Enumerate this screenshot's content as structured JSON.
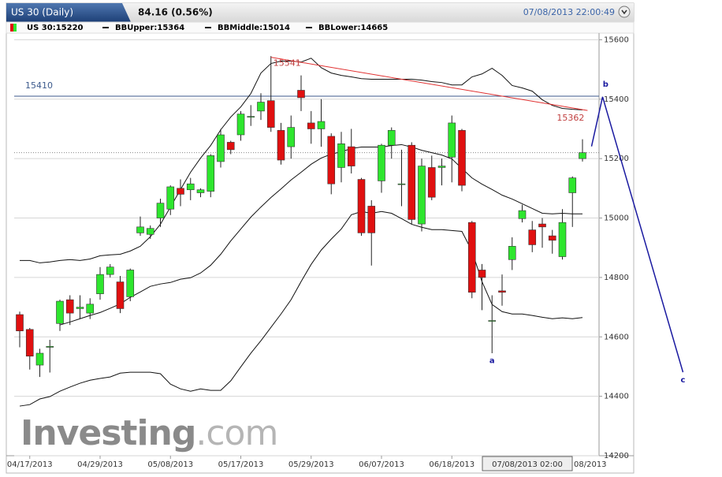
{
  "header": {
    "tab": "US 30 (Daily)",
    "change": "84.16 (0.56%)",
    "timestamp": "07/08/2013 22:00:49"
  },
  "legend": [
    "US 30:15220",
    "BBUpper:15364",
    "BBMiddle:15014",
    "BBLower:14665"
  ],
  "watermark": {
    "brand": "Investing",
    "suffix": ".com"
  },
  "chart_data": {
    "type": "candlestick",
    "up_color": "#2ee62e",
    "down_color": "#e01010",
    "categories": [
      null,
      "04/17/2013",
      null,
      null,
      null,
      null,
      null,
      null,
      "04/29/2013",
      null,
      null,
      null,
      null,
      null,
      null,
      "05/08/2013",
      null,
      null,
      null,
      null,
      null,
      null,
      "05/17/2013",
      null,
      null,
      null,
      null,
      null,
      null,
      "05/29/2013",
      null,
      null,
      null,
      null,
      null,
      null,
      "06/07/2013",
      null,
      null,
      null,
      null,
      null,
      null,
      "06/18/2013",
      null,
      null,
      null,
      null,
      null,
      null,
      null,
      null,
      null,
      null,
      null,
      null,
      null
    ],
    "crosshair_label": "07/08/2013 02:00",
    "clipped_x_label": "08/2013",
    "open": [
      14675,
      14625,
      14505,
      14565,
      14645,
      14725,
      14695,
      14680,
      14745,
      14810,
      14785,
      14735,
      14950,
      14945,
      15000,
      15030,
      15100,
      15095,
      15085,
      15090,
      15190,
      15255,
      15280,
      15340,
      15360,
      15395,
      15295,
      15240,
      15430,
      15320,
      15300,
      15275,
      15170,
      15240,
      15130,
      15040,
      15125,
      15245,
      15115,
      15245,
      14980,
      15170,
      15170,
      15205,
      15295,
      14985,
      14825,
      14655,
      14755,
      14860,
      14998,
      14960,
      14980,
      14940,
      14870,
      15085,
      15200
    ],
    "high": [
      14685,
      14630,
      14560,
      14590,
      14725,
      14740,
      14740,
      14730,
      14835,
      14845,
      14805,
      14830,
      15005,
      14975,
      15065,
      15110,
      15130,
      15135,
      15100,
      15215,
      15300,
      15260,
      15360,
      15380,
      15420,
      15545,
      15320,
      15345,
      15480,
      15360,
      15400,
      15285,
      15290,
      15300,
      15135,
      15060,
      15250,
      15305,
      15230,
      15255,
      15200,
      15210,
      15200,
      15345,
      15300,
      14990,
      14845,
      14740,
      14810,
      14935,
      15045,
      14990,
      15000,
      14960,
      15030,
      15140,
      15265
    ],
    "low": [
      14565,
      14490,
      14465,
      14480,
      14620,
      14640,
      14660,
      14660,
      14725,
      14800,
      14680,
      14720,
      14940,
      14930,
      14970,
      15010,
      15040,
      15060,
      15070,
      15070,
      15170,
      15215,
      15260,
      15310,
      15330,
      15290,
      15180,
      15200,
      15360,
      15250,
      15240,
      15080,
      15120,
      15150,
      14940,
      14840,
      15085,
      15200,
      15040,
      14980,
      14955,
      15060,
      15110,
      15120,
      15090,
      14730,
      14690,
      14545,
      14705,
      14825,
      14985,
      14885,
      14900,
      14880,
      14860,
      14970,
      15190
    ],
    "close": [
      14620,
      14535,
      14545,
      14568,
      14720,
      14680,
      14700,
      14710,
      14810,
      14835,
      14695,
      14825,
      14970,
      14965,
      15050,
      15105,
      15080,
      15115,
      15095,
      15210,
      15280,
      15230,
      15350,
      15342,
      15390,
      15305,
      15195,
      15305,
      15405,
      15300,
      15325,
      15115,
      15250,
      15175,
      14950,
      14950,
      15245,
      15295,
      15115,
      14995,
      15175,
      15070,
      15175,
      15320,
      15110,
      14750,
      14800,
      14655,
      14750,
      14905,
      15025,
      14910,
      14970,
      14925,
      14985,
      15135,
      15220
    ],
    "overlays": [
      {
        "color": "#111111",
        "values": [
          14857,
          14857,
          14849,
          14852,
          14857,
          14860,
          14857,
          14862,
          14873,
          14876,
          14878,
          14889,
          14905,
          14937,
          14979,
          15037,
          15096,
          15154,
          15202,
          15244,
          15297,
          15340,
          15374,
          15419,
          15488,
          15520,
          15528,
          15528,
          15525,
          15538,
          15506,
          15488,
          15480,
          15475,
          15469,
          15467,
          15467,
          15467,
          15467,
          15467,
          15464,
          15459,
          15456,
          15448,
          15448,
          15475,
          15485,
          15504,
          15480,
          15446,
          15438,
          15427,
          15398,
          15379,
          15369,
          15366,
          15364
        ]
      },
      {
        "color": "#111111",
        "values": [
          null,
          null,
          null,
          null,
          14640,
          14650,
          14661,
          14672,
          14682,
          14696,
          14711,
          14733,
          14751,
          14770,
          14778,
          14783,
          14794,
          14799,
          14815,
          14841,
          14878,
          14923,
          14963,
          15003,
          15037,
          15069,
          15098,
          15128,
          15154,
          15181,
          15202,
          15215,
          15223,
          15234,
          15239,
          15239,
          15239,
          15244,
          15247,
          15239,
          15228,
          15220,
          15212,
          15199,
          15167,
          15135,
          15114,
          15096,
          15077,
          15064,
          15048,
          15032,
          15016,
          15014,
          15016,
          15014,
          15014
        ]
      },
      {
        "color": "#111111",
        "values": [
          14367,
          14372,
          14391,
          14399,
          14417,
          14431,
          14444,
          14454,
          14460,
          14465,
          14478,
          14481,
          14481,
          14481,
          14476,
          14441,
          14425,
          14417,
          14425,
          14420,
          14420,
          14452,
          14499,
          14545,
          14587,
          14632,
          14677,
          14725,
          14786,
          14844,
          14892,
          14929,
          14963,
          15011,
          15022,
          15016,
          15022,
          15016,
          14998,
          14979,
          14969,
          14961,
          14961,
          14958,
          14955,
          14889,
          14786,
          14709,
          14685,
          14677,
          14677,
          14672,
          14666,
          14661,
          14664,
          14661,
          14665
        ]
      }
    ],
    "hline": {
      "value": 15410,
      "color": "#3c5a8c"
    },
    "price_line": {
      "value": 15220
    },
    "trendline": {
      "color": "#e03030",
      "x": [
        25,
        56.5
      ],
      "y": [
        15541,
        15362
      ]
    },
    "waves": {
      "color": "#1a1aa0",
      "x": [
        56.9,
        58,
        66
      ],
      "y": [
        15241,
        15408,
        14481
      ]
    },
    "wave_labels": [
      {
        "text": "a",
        "x": 47,
        "y": 14520
      },
      {
        "text": "b",
        "x": 58.3,
        "y": 15450
      },
      {
        "text": "c",
        "x": 66,
        "y": 14455
      }
    ],
    "ylim": [
      14200,
      15625
    ],
    "yticks": [
      14200,
      14400,
      14600,
      14800,
      15000,
      15200,
      15400,
      15600
    ],
    "grid": true
  }
}
